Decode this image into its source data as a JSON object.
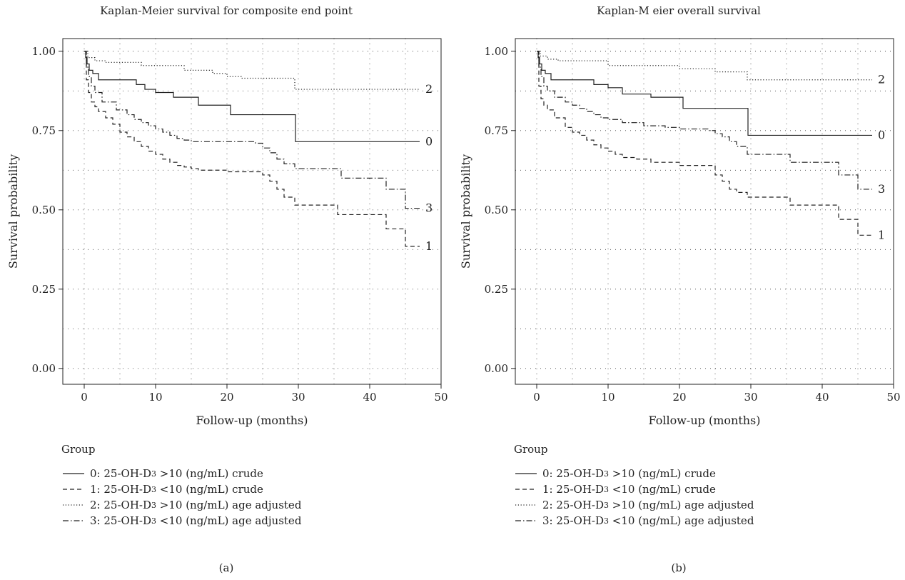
{
  "panels": [
    {
      "title": "Kaplan-Meier survival for composite end point",
      "panel_label": "(a)",
      "xlabel": "Follow-up (months)",
      "ylabel": "Survival probability",
      "legend_title": "Group"
    },
    {
      "title": "Kaplan-M eier overall survival",
      "panel_label": "(b)",
      "xlabel": "Follow-up (months)",
      "ylabel": "Survival probability",
      "legend_title": "Group"
    }
  ],
  "legend_entries": [
    {
      "id": "0",
      "prefix": "0: 25-OH-D",
      "sub": "3",
      "suffix": " >10 (ng/mL) crude",
      "dash": "solid"
    },
    {
      "id": "1",
      "prefix": "1: 25-OH-D",
      "sub": "3",
      "suffix": " <10 (ng/mL) crude",
      "dash": "dashed"
    },
    {
      "id": "2",
      "prefix": "2: 25-OH-D",
      "sub": "3",
      "suffix": " >10 (ng/mL) age adjusted",
      "dash": "dotted"
    },
    {
      "id": "3",
      "prefix": "3: 25-OH-D",
      "sub": "3",
      "suffix": " <10 (ng/mL) age adjusted",
      "dash": "dashdot"
    }
  ],
  "chart_data": [
    {
      "type": "line",
      "step": true,
      "title": "Kaplan-Meier survival for composite end point",
      "xlabel": "Follow-up (months)",
      "ylabel": "Survival probability",
      "xlim": [
        -3,
        50
      ],
      "ylim": [
        -0.05,
        1.04
      ],
      "xticks": [
        0,
        10,
        20,
        30,
        40,
        50
      ],
      "yticks": [
        0.0,
        0.25,
        0.5,
        0.75,
        1.0
      ],
      "ytick_labels": [
        "0.00",
        "0.25",
        "0.50",
        "0.75",
        "1.00"
      ],
      "grid": true,
      "series": [
        {
          "name": "0",
          "label": "0",
          "dash": "solid",
          "x": [
            0,
            0.2,
            0.4,
            0.7,
            1.2,
            2,
            7.3,
            8.5,
            10,
            12.5,
            16,
            20.5,
            29.6,
            47
          ],
          "y": [
            1.0,
            0.98,
            0.96,
            0.94,
            0.93,
            0.91,
            0.895,
            0.88,
            0.87,
            0.855,
            0.83,
            0.8,
            0.715,
            0.715
          ]
        },
        {
          "name": "1",
          "label": "1",
          "dash": "dashed",
          "x": [
            0,
            0.3,
            0.6,
            1,
            1.5,
            2,
            3,
            4,
            5,
            6,
            7,
            8,
            9,
            10,
            11,
            12,
            13,
            14,
            15,
            16,
            20,
            25,
            26,
            27,
            28,
            29.5,
            35.5,
            42.3,
            45,
            47
          ],
          "y": [
            1.0,
            0.91,
            0.87,
            0.84,
            0.825,
            0.81,
            0.79,
            0.77,
            0.745,
            0.73,
            0.715,
            0.7,
            0.685,
            0.675,
            0.66,
            0.65,
            0.64,
            0.635,
            0.63,
            0.625,
            0.62,
            0.61,
            0.59,
            0.565,
            0.54,
            0.515,
            0.485,
            0.44,
            0.385,
            0.385
          ]
        },
        {
          "name": "2",
          "label": "2",
          "dash": "dotted",
          "x": [
            0,
            0.5,
            1.5,
            3,
            8,
            14,
            18,
            20,
            22,
            29.5,
            47
          ],
          "y": [
            1.0,
            0.98,
            0.97,
            0.965,
            0.955,
            0.94,
            0.93,
            0.92,
            0.915,
            0.88,
            0.88
          ]
        },
        {
          "name": "3",
          "label": "3",
          "dash": "dashdot",
          "x": [
            0,
            0.3,
            0.6,
            1,
            1.5,
            2.5,
            4.5,
            6,
            7,
            8,
            9,
            10,
            11,
            12,
            13,
            14,
            15,
            20,
            24,
            25,
            26,
            27,
            28,
            29.5,
            36,
            42.3,
            45,
            47
          ],
          "y": [
            1.0,
            0.95,
            0.92,
            0.89,
            0.87,
            0.84,
            0.815,
            0.8,
            0.785,
            0.775,
            0.765,
            0.755,
            0.745,
            0.735,
            0.725,
            0.72,
            0.715,
            0.715,
            0.71,
            0.695,
            0.68,
            0.66,
            0.645,
            0.63,
            0.6,
            0.565,
            0.505,
            0.505
          ]
        }
      ]
    },
    {
      "type": "line",
      "step": true,
      "title": "Kaplan-M eier overall survival",
      "xlabel": "Follow-up (months)",
      "ylabel": "Survival probability",
      "xlim": [
        -3,
        50
      ],
      "ylim": [
        -0.05,
        1.04
      ],
      "xticks": [
        0,
        10,
        20,
        30,
        40,
        50
      ],
      "yticks": [
        0.0,
        0.25,
        0.5,
        0.75,
        1.0
      ],
      "ytick_labels": [
        "0.00",
        "0.25",
        "0.50",
        "0.75",
        "1.00"
      ],
      "grid": true,
      "series": [
        {
          "name": "0",
          "label": "0",
          "dash": "solid",
          "x": [
            0,
            0.2,
            0.4,
            0.7,
            1.2,
            2,
            8,
            10,
            12,
            16,
            20.5,
            29.6,
            47
          ],
          "y": [
            1.0,
            0.98,
            0.96,
            0.94,
            0.93,
            0.91,
            0.895,
            0.885,
            0.865,
            0.855,
            0.82,
            0.735,
            0.735
          ]
        },
        {
          "name": "1",
          "label": "1",
          "dash": "dashed",
          "x": [
            0,
            0.3,
            0.6,
            1,
            1.5,
            2.5,
            4,
            5,
            6,
            7,
            8,
            9,
            10,
            11,
            12,
            14,
            16,
            20,
            25,
            26,
            27,
            28,
            29.5,
            35.5,
            42.3,
            45,
            47
          ],
          "y": [
            1.0,
            0.89,
            0.85,
            0.83,
            0.815,
            0.79,
            0.76,
            0.745,
            0.735,
            0.72,
            0.705,
            0.695,
            0.685,
            0.675,
            0.665,
            0.66,
            0.65,
            0.64,
            0.61,
            0.59,
            0.565,
            0.555,
            0.54,
            0.515,
            0.47,
            0.42,
            0.42
          ]
        },
        {
          "name": "2",
          "label": "2",
          "dash": "dotted",
          "x": [
            0,
            0.5,
            1.5,
            3,
            10,
            20,
            25,
            29.5,
            47
          ],
          "y": [
            1.0,
            0.985,
            0.975,
            0.97,
            0.955,
            0.945,
            0.935,
            0.91,
            0.91
          ]
        },
        {
          "name": "3",
          "label": "3",
          "dash": "dashdot",
          "x": [
            0,
            0.3,
            0.6,
            1,
            1.5,
            2.5,
            4,
            5,
            6,
            7,
            8,
            9,
            10,
            12,
            15,
            18,
            20,
            24,
            25,
            26,
            27,
            28,
            29.5,
            35.5,
            42.3,
            45,
            47
          ],
          "y": [
            1.0,
            0.95,
            0.92,
            0.89,
            0.875,
            0.855,
            0.84,
            0.83,
            0.82,
            0.81,
            0.8,
            0.79,
            0.785,
            0.775,
            0.765,
            0.76,
            0.755,
            0.75,
            0.74,
            0.73,
            0.715,
            0.7,
            0.675,
            0.65,
            0.61,
            0.565,
            0.565
          ]
        }
      ]
    }
  ]
}
